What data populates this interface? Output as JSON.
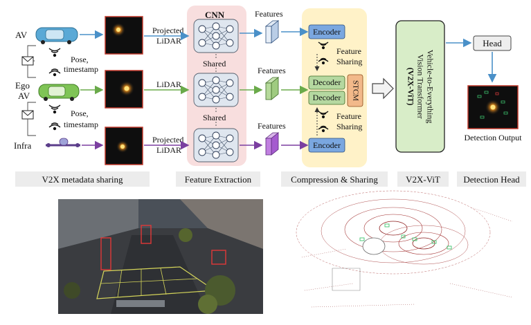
{
  "agents": {
    "av": "AV",
    "ego_line1": "Ego",
    "ego_line2": "AV",
    "infra": "Infra"
  },
  "metadata": {
    "pose_1": "Pose,",
    "timestamp_1": "timestamp",
    "pose_2": "Pose,",
    "timestamp_2": "timestamp"
  },
  "lidar_labels": {
    "top_1": "Projected",
    "top_2": "LiDAR",
    "middle": "LiDAR",
    "bottom_1": "Projected",
    "bottom_2": "LiDAR"
  },
  "cnn": {
    "title": "CNN",
    "shared_1": "Shared",
    "shared_2": "Shared"
  },
  "features": {
    "top": "Features",
    "middle": "Features",
    "bottom": "Features"
  },
  "compression": {
    "encoder_top": "Encoder",
    "feature_sharing_1a": "Feature",
    "feature_sharing_1b": "Sharing",
    "decoder_1": "Decoder",
    "decoder_2": "Decoder",
    "stcm": "STCM",
    "feature_sharing_2a": "Feature",
    "feature_sharing_2b": "Sharing",
    "encoder_bottom": "Encoder"
  },
  "vit": {
    "line1": "Vehicle-to-Everything",
    "line2": "Vision Transformer",
    "line3": "(V2X-ViT)"
  },
  "head": {
    "label": "Head",
    "output": "Detection Output"
  },
  "stage_labels": {
    "metadata": "V2X metadata sharing",
    "feature": "Feature Extraction",
    "compression": "Compression & Sharing",
    "vit": "V2X-ViT",
    "detection": "Detection Head"
  },
  "colors": {
    "blue_arrow": "#4a90c8",
    "green_arrow": "#6aaa4a",
    "purple_arrow": "#7b3fa0",
    "cnn_bg": "#f8dede",
    "compression_bg": "#fff2c8",
    "vit_bg": "#d8edc8",
    "encoder": "#7aa7e0",
    "decoder": "#b5d8a0",
    "stcm": "#f2b98a",
    "stage_label_bg": "#ececec"
  }
}
